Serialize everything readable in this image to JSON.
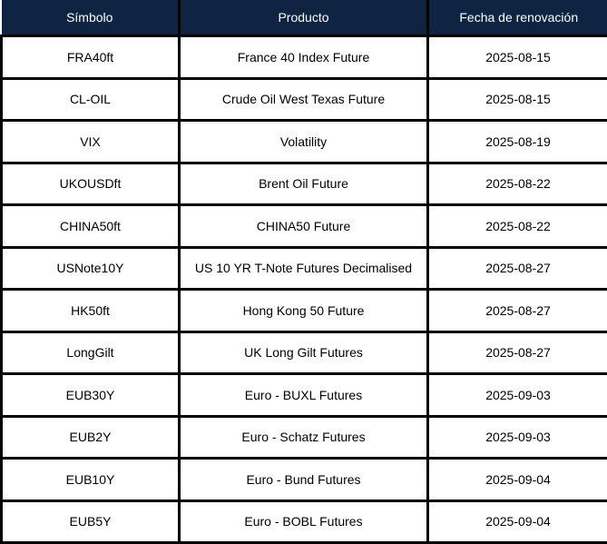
{
  "colors": {
    "header_bg": "#0e2442",
    "header_text": "#ffffff",
    "border": "#000000",
    "row_bg": "#ffffff",
    "cell_text": "#000000"
  },
  "table": {
    "columns": [
      "Símbolo",
      "Producto",
      "Fecha de renovación"
    ],
    "rows": [
      {
        "symbol": "FRA40ft",
        "product": "France 40 Index Future",
        "renewal_date": "2025-08-15"
      },
      {
        "symbol": "CL-OIL",
        "product": "Crude Oil West Texas Future",
        "renewal_date": "2025-08-15"
      },
      {
        "symbol": "VIX",
        "product": "Volatility",
        "renewal_date": "2025-08-19"
      },
      {
        "symbol": "UKOUSDft",
        "product": "Brent Oil Future",
        "renewal_date": "2025-08-22"
      },
      {
        "symbol": "CHINA50ft",
        "product": "CHINA50 Future",
        "renewal_date": "2025-08-22"
      },
      {
        "symbol": "USNote10Y",
        "product": "US 10 YR T-Note Futures Decimalised",
        "renewal_date": "2025-08-27"
      },
      {
        "symbol": "HK50ft",
        "product": "Hong Kong 50 Future",
        "renewal_date": "2025-08-27"
      },
      {
        "symbol": "LongGilt",
        "product": "UK Long Gilt Futures",
        "renewal_date": "2025-08-27"
      },
      {
        "symbol": "EUB30Y",
        "product": "Euro - BUXL Futures",
        "renewal_date": "2025-09-03"
      },
      {
        "symbol": "EUB2Y",
        "product": "Euro - Schatz Futures",
        "renewal_date": "2025-09-03"
      },
      {
        "symbol": "EUB10Y",
        "product": "Euro - Bund Futures",
        "renewal_date": "2025-09-04"
      },
      {
        "symbol": "EUB5Y",
        "product": "Euro - BOBL Futures",
        "renewal_date": "2025-09-04"
      }
    ]
  }
}
